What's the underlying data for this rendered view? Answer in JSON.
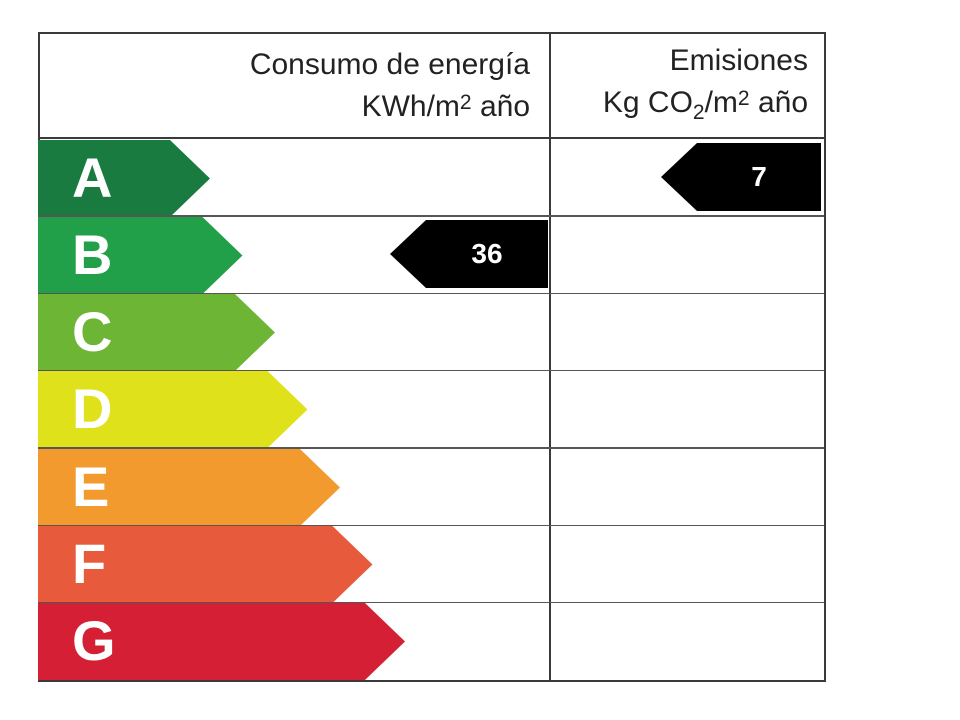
{
  "header": {
    "energy_title": "Consumo de energía",
    "energy_unit_prefix": "KWh/m",
    "energy_unit_sup": "2",
    "energy_unit_suffix": " año",
    "emissions_title": "Emisiones",
    "emissions_unit_prefix": "Kg CO",
    "emissions_unit_sub": "2",
    "emissions_unit_mid": "/m",
    "emissions_unit_sup": "2",
    "emissions_unit_suffix": " año"
  },
  "ratings": [
    {
      "letter": "A",
      "color": "#197b3f"
    },
    {
      "letter": "B",
      "color": "#22a049"
    },
    {
      "letter": "C",
      "color": "#6cb535"
    },
    {
      "letter": "D",
      "color": "#dfe11a"
    },
    {
      "letter": "E",
      "color": "#f29a2e"
    },
    {
      "letter": "F",
      "color": "#e85a3c"
    },
    {
      "letter": "G",
      "color": "#d41f35"
    }
  ],
  "energy_indicator": {
    "value": "36",
    "class": "B",
    "color": "#000000"
  },
  "emissions_indicator": {
    "value": "7",
    "class": "A",
    "color": "#000000"
  }
}
